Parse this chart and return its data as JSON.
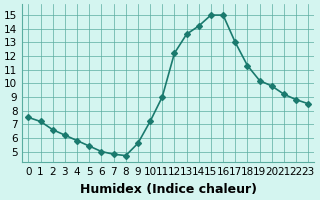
{
  "x": [
    0,
    1,
    2,
    3,
    4,
    5,
    6,
    7,
    8,
    9,
    10,
    11,
    12,
    13,
    14,
    15,
    16,
    17,
    18,
    19,
    20,
    21,
    22,
    23
  ],
  "y": [
    7.5,
    7.2,
    6.6,
    6.2,
    5.8,
    5.4,
    5.0,
    4.8,
    4.7,
    5.6,
    7.2,
    9.0,
    12.2,
    13.6,
    14.2,
    15.0,
    15.0,
    13.0,
    11.3,
    10.2,
    9.8,
    9.2,
    8.8,
    8.5
  ],
  "line_color": "#1a7a6e",
  "marker": "D",
  "marker_size": 3,
  "bg_color": "#d4f5f0",
  "grid_color": "#5aada0",
  "xlabel": "Humidex (Indice chaleur)",
  "xlim": [
    -0.5,
    23.5
  ],
  "ylim": [
    4.2,
    15.8
  ],
  "yticks": [
    5,
    6,
    7,
    8,
    9,
    10,
    11,
    12,
    13,
    14,
    15
  ],
  "xticks": [
    0,
    1,
    2,
    3,
    4,
    5,
    6,
    7,
    8,
    9,
    10,
    11,
    12,
    13,
    14,
    15,
    16,
    17,
    18,
    19,
    20,
    21,
    22,
    23
  ],
  "xtick_labels": [
    "0",
    "1",
    "2",
    "3",
    "4",
    "5",
    "6",
    "7",
    "8",
    "9",
    "10",
    "11",
    "12",
    "13",
    "14",
    "15",
    "16",
    "17",
    "18",
    "19",
    "20",
    "21",
    "22",
    "23"
  ],
  "xlabel_fontsize": 9,
  "tick_fontsize": 7.5
}
